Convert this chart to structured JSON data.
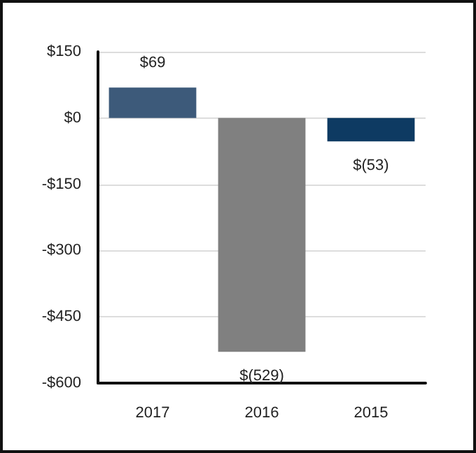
{
  "chart_data": {
    "type": "bar",
    "categories": [
      "2017",
      "2016",
      "2015"
    ],
    "values": [
      69,
      -529,
      -53
    ],
    "colors": [
      "#3d5a7a",
      "#808080",
      "#0e3a62"
    ],
    "value_labels": [
      "$69",
      "$(529)",
      "$(53)"
    ],
    "ylim": [
      -600,
      150
    ],
    "yticks": [
      {
        "value": 150,
        "label": "$150"
      },
      {
        "value": 0,
        "label": "$0"
      },
      {
        "value": -150,
        "label": "-$150"
      },
      {
        "value": -300,
        "label": "-$300"
      },
      {
        "value": -450,
        "label": "-$450"
      },
      {
        "value": -600,
        "label": "-$600"
      }
    ],
    "grid": "y"
  }
}
